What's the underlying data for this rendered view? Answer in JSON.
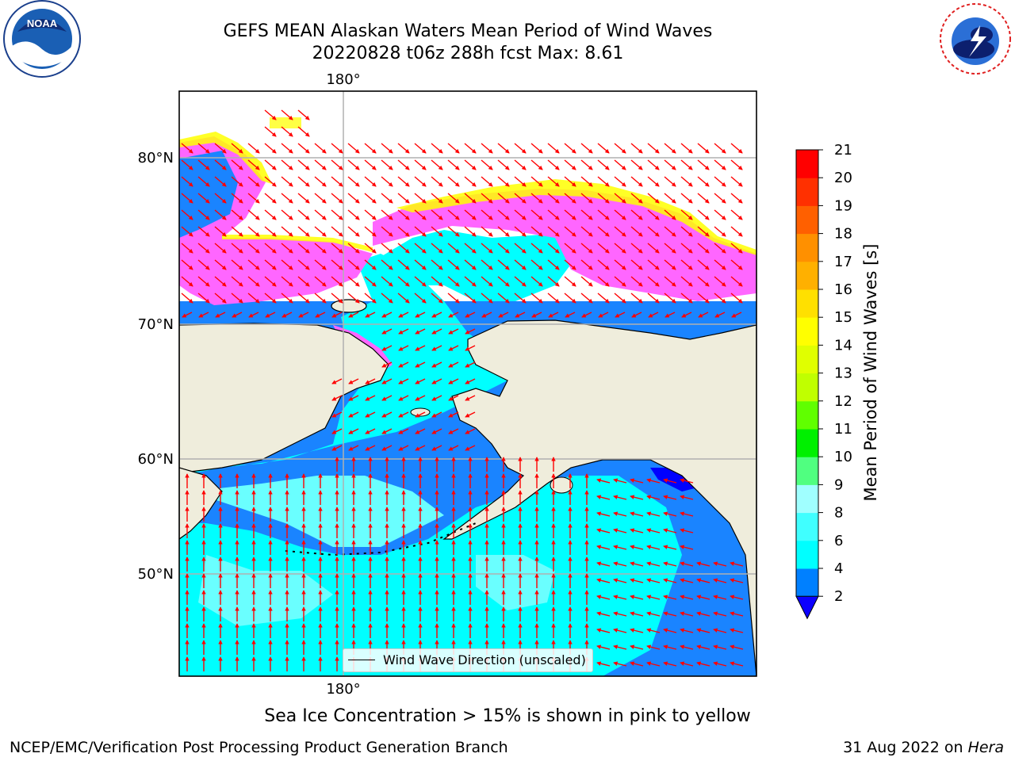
{
  "header": {
    "title_line1": "GEFS MEAN Alaskan Waters Mean Period of Wind Waves",
    "title_line2": "20220828 t06z 288h fcst   Max: 8.61"
  },
  "logos": {
    "left": {
      "name": "NOAA",
      "ring_text": "NATIONAL OCEANIC AND ATMOSPHERIC ADMINISTRATION · U.S. DEPARTMENT OF COMMERCE"
    },
    "right": {
      "name": "NATIONAL WEATHER SERVICE"
    }
  },
  "map": {
    "lon_labels": [
      "180°",
      "180°"
    ],
    "lat_labels": [
      "80°N",
      "70°N",
      "60°N",
      "50°N"
    ],
    "legend_label": "Wind Wave Direction (unscaled)",
    "colors": {
      "land": "#efeddc",
      "arrow": "#ff0000",
      "grid": "#b0b0b0"
    }
  },
  "colorbar": {
    "label": "Mean Period of Wind Waves [s]",
    "ticks": [
      "21",
      "20",
      "19",
      "18",
      "17",
      "16",
      "15",
      "14",
      "13",
      "12",
      "11",
      "10",
      "9",
      "8",
      "6",
      "4",
      "2"
    ],
    "colors": [
      "#0c00ff",
      "#0080ff",
      "#00ffff",
      "#40ffff",
      "#a0ffff",
      "#50ff80",
      "#00f000",
      "#60ff00",
      "#c0ff00",
      "#e0ff00",
      "#ffff00",
      "#ffe000",
      "#ffb000",
      "#ff9000",
      "#ff6000",
      "#ff3000",
      "#ff0000"
    ]
  },
  "caption": "Sea Ice Concentration > 15% is shown in pink to yellow",
  "footer": {
    "left": "NCEP/EMC/Verification Post Processing Product Generation Branch",
    "right_date": "31 Aug 2022 on ",
    "right_host": "Hera"
  }
}
